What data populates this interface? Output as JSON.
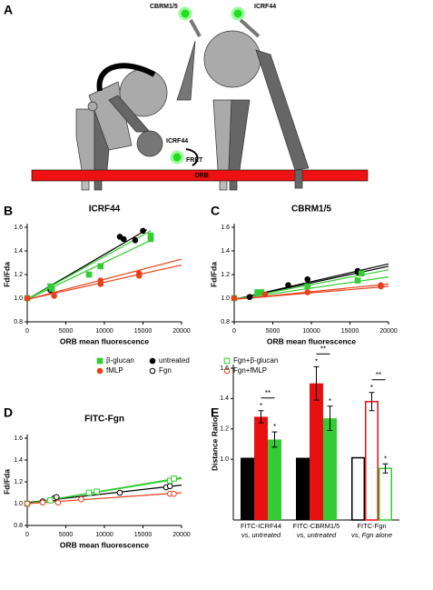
{
  "diagram": {
    "panel": "A",
    "labels": [
      "CBRM1/5",
      "ICRF44",
      "ICRF44",
      "FRET",
      "ORB"
    ]
  },
  "legend": {
    "items": [
      {
        "name": "β-glucan",
        "color": "#33cc33",
        "marker": "square",
        "filled": true
      },
      {
        "name": "untreated",
        "color": "#000000",
        "marker": "circle",
        "filled": true
      },
      {
        "name": "Fgn+β-glucan",
        "color": "#33cc33",
        "marker": "square",
        "filled": false
      },
      {
        "name": "fMLP",
        "color": "#e8401c",
        "marker": "circle",
        "filled": true
      },
      {
        "name": "Fgn",
        "color": "#000000",
        "marker": "circle",
        "filled": false
      },
      {
        "name": "Fgn+fMLP",
        "color": "#e8401c",
        "marker": "circle",
        "filled": false
      }
    ]
  },
  "chart_data": [
    {
      "type": "scatter",
      "panel": "B",
      "title": "ICRF44",
      "xlabel": "ORB mean fluorescence",
      "ylabel": "Fd/Fda",
      "xlim": [
        0,
        20000
      ],
      "xticks": [
        0,
        5000,
        10000,
        15000,
        20000
      ],
      "ylim": [
        0.8,
        1.6
      ],
      "yticks": [
        0.8,
        {
          "value": 1.0,
          "label": "1.0"
        },
        1.2,
        1.4,
        1.6
      ],
      "series": [
        {
          "name": "untreated",
          "color": "#000000",
          "marker": "circle",
          "filled": true,
          "x": [
            0,
            3000,
            12000,
            12500,
            14000,
            15000
          ],
          "y": [
            1.0,
            1.07,
            1.52,
            1.5,
            1.49,
            1.57
          ],
          "fits": [
            {
              "x": [
                0,
                15500
              ],
              "y": [
                0.99,
                1.58
              ]
            }
          ]
        },
        {
          "name": "β-glucan",
          "color": "#33cc33",
          "marker": "square",
          "filled": true,
          "x": [
            0,
            3000,
            3200,
            8000,
            9500,
            16000,
            16000
          ],
          "y": [
            1.0,
            1.1,
            1.08,
            1.2,
            1.27,
            1.5,
            1.53
          ],
          "fits": [
            {
              "x": [
                0,
                16000
              ],
              "y": [
                0.99,
                1.57
              ]
            },
            {
              "x": [
                0,
                16000
              ],
              "y": [
                0.99,
                1.49
              ]
            }
          ]
        },
        {
          "name": "fMLP",
          "color": "#e8401c",
          "marker": "circle",
          "filled": true,
          "x": [
            0,
            3500,
            9500,
            9500,
            14500,
            14500
          ],
          "y": [
            1.0,
            1.02,
            1.12,
            1.15,
            1.19,
            1.21
          ],
          "fits": [
            {
              "x": [
                0,
                20000
              ],
              "y": [
                0.99,
                1.28
              ]
            },
            {
              "x": [
                0,
                20000
              ],
              "y": [
                0.99,
                1.33
              ]
            }
          ]
        }
      ]
    },
    {
      "type": "scatter",
      "panel": "C",
      "title": "CBRM1/5",
      "xlabel": "ORB mean fluorescence",
      "ylabel": "Fd/Fda",
      "xlim": [
        0,
        20000
      ],
      "xticks": [
        0,
        5000,
        10000,
        15000,
        20000
      ],
      "ylim": [
        0.8,
        1.6
      ],
      "yticks": [
        0.8,
        {
          "value": 1.0,
          "label": "1.0"
        },
        1.2,
        1.4,
        1.6
      ],
      "series": [
        {
          "name": "untreated",
          "color": "#000000",
          "marker": "circle",
          "filled": true,
          "x": [
            0,
            2000,
            7000,
            9500,
            16000,
            16000
          ],
          "y": [
            1.0,
            1.01,
            1.11,
            1.16,
            1.22,
            1.23
          ],
          "fits": [
            {
              "x": [
                0,
                20000
              ],
              "y": [
                0.99,
                1.27
              ]
            },
            {
              "x": [
                0,
                20000
              ],
              "y": [
                0.99,
                1.29
              ]
            }
          ]
        },
        {
          "name": "β-glucan",
          "color": "#33cc33",
          "marker": "square",
          "filled": true,
          "x": [
            0,
            3000,
            3500,
            9500,
            16000,
            16500
          ],
          "y": [
            1.0,
            1.05,
            1.05,
            1.1,
            1.15,
            1.21
          ],
          "fits": [
            {
              "x": [
                0,
                20000
              ],
              "y": [
                0.99,
                1.18
              ]
            },
            {
              "x": [
                0,
                20000
              ],
              "y": [
                0.99,
                1.24
              ]
            }
          ]
        },
        {
          "name": "fMLP",
          "color": "#e8401c",
          "marker": "circle",
          "filled": true,
          "x": [
            0,
            4000,
            9500,
            19000,
            19000
          ],
          "y": [
            1.0,
            1.03,
            1.05,
            1.1,
            1.11
          ],
          "fits": [
            {
              "x": [
                0,
                20000
              ],
              "y": [
                0.99,
                1.1
              ]
            },
            {
              "x": [
                0,
                20000
              ],
              "y": [
                0.99,
                1.12
              ]
            }
          ]
        }
      ]
    },
    {
      "type": "scatter",
      "panel": "D",
      "title": "FITC-Fgn",
      "xlabel": "ORB mean fluorescence",
      "ylabel": "Fd/Fda",
      "xlim": [
        0,
        20000
      ],
      "xticks": [
        0,
        5000,
        10000,
        15000,
        20000
      ],
      "ylim": [
        0.8,
        1.6
      ],
      "yticks": [
        0.8,
        {
          "value": 1.0,
          "label": "1.0"
        },
        1.2,
        1.4,
        1.6
      ],
      "series": [
        {
          "name": "Fgn",
          "color": "#000000",
          "marker": "circle",
          "filled": false,
          "x": [
            0,
            2000,
            3500,
            3800,
            12000,
            18000,
            18500
          ],
          "y": [
            1.0,
            1.02,
            1.05,
            1.06,
            1.1,
            1.15,
            1.16
          ],
          "fits": [
            {
              "x": [
                0,
                20000
              ],
              "y": [
                1.01,
                1.17
              ]
            }
          ]
        },
        {
          "name": "Fgn+β-glucan",
          "color": "#33cc33",
          "marker": "square",
          "filled": false,
          "x": [
            0,
            3000,
            8000,
            9000,
            18500,
            19000
          ],
          "y": [
            1.0,
            1.03,
            1.1,
            1.11,
            1.21,
            1.23
          ],
          "fits": [
            {
              "x": [
                0,
                20000
              ],
              "y": [
                1.0,
                1.23
              ]
            },
            {
              "x": [
                0,
                20000
              ],
              "y": [
                1.0,
                1.24
              ]
            }
          ]
        },
        {
          "name": "Fgn+fMLP",
          "color": "#e8401c",
          "marker": "circle",
          "filled": false,
          "x": [
            0,
            2000,
            4000,
            7000,
            18500,
            19000
          ],
          "y": [
            1.0,
            1.01,
            1.01,
            1.04,
            1.09,
            1.09
          ],
          "fits": [
            {
              "x": [
                0,
                20000
              ],
              "y": [
                1.0,
                1.1
              ]
            }
          ]
        }
      ]
    },
    {
      "type": "bar",
      "panel": "E",
      "ylabel": "Distance Ratio",
      "ylim": [
        0.6,
        1.6
      ],
      "yticks": [
        {
          "value": 1.0,
          "label": "1.0"
        },
        1.2,
        1.4,
        1.6
      ],
      "groups": [
        {
          "label": "FITC-ICRF44",
          "sublabel": "vs, untreated",
          "bracket": "**",
          "bars": [
            {
              "value": 1.01,
              "color": "#000000",
              "filled": true
            },
            {
              "value": 1.28,
              "error": 0.04,
              "color": "#e81010",
              "filled": true,
              "star": "*"
            },
            {
              "value": 1.13,
              "error": 0.05,
              "color": "#33cc33",
              "filled": true,
              "star": "*"
            }
          ]
        },
        {
          "label": "FITC-CBRM1/5",
          "sublabel": "vs, untreated",
          "bracket": "**",
          "bars": [
            {
              "value": 1.01,
              "color": "#000000",
              "filled": true
            },
            {
              "value": 1.5,
              "error": 0.11,
              "color": "#e81010",
              "filled": true,
              "star": "*"
            },
            {
              "value": 1.27,
              "error": 0.08,
              "color": "#33cc33",
              "filled": true,
              "star": "*"
            }
          ]
        },
        {
          "label": "FITC-Fgn",
          "sublabel": "vs, Fgn alone",
          "bracket": "**",
          "bars": [
            {
              "value": 1.01,
              "color": "#000000",
              "filled": false
            },
            {
              "value": 1.38,
              "error": 0.06,
              "color": "#e81010",
              "filled": false,
              "star": "*"
            },
            {
              "value": 0.94,
              "error": 0.03,
              "color": "#33cc33",
              "filled": false,
              "star": "*"
            }
          ]
        }
      ]
    }
  ]
}
